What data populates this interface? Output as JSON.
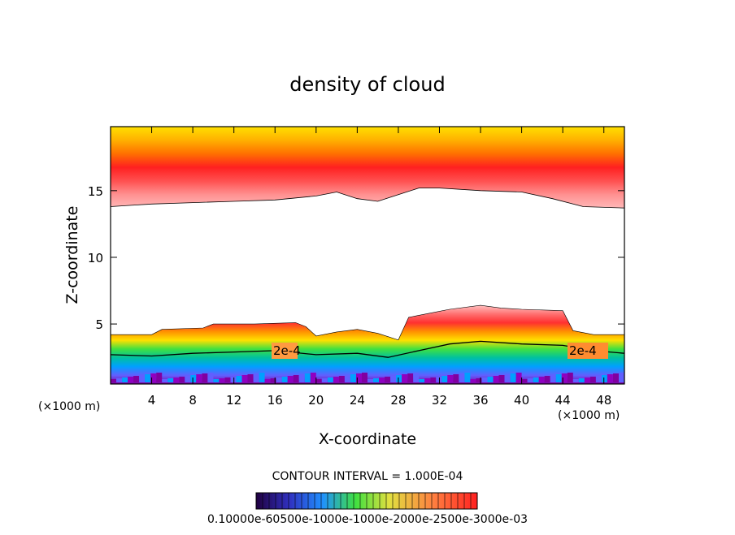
{
  "chart_data": {
    "type": "heatmap",
    "title": "density of cloud",
    "xlabel": "X-coordinate",
    "ylabel": "Z-coordinate",
    "x_unit": "(×1000 m)",
    "y_unit": "(×1000 m)",
    "xlim": [
      0,
      50
    ],
    "ylim": [
      0.5,
      19.8
    ],
    "x_ticks": [
      4,
      8,
      12,
      16,
      20,
      24,
      28,
      32,
      36,
      40,
      44,
      48
    ],
    "x_tick_labels": [
      "4",
      "8",
      "12",
      "16",
      "20",
      "24",
      "28",
      "32",
      "36",
      "40",
      "44",
      "48"
    ],
    "y_ticks": [
      5,
      10,
      15
    ],
    "y_tick_labels": [
      "5",
      "10",
      "15"
    ],
    "contour_interval_text": "CONTOUR INTERVAL = 1.000E-04",
    "contour_labels": [
      "2e-4",
      "2e-4"
    ],
    "colorbar_labels_text": "0.10000e-60500e-1000e-1000e-2000e-2500e-3000e-03",
    "upper_cloud_base_km": [
      [
        0,
        13.8
      ],
      [
        2,
        13.9
      ],
      [
        4,
        14.0
      ],
      [
        8,
        14.1
      ],
      [
        12,
        14.2
      ],
      [
        16,
        14.3
      ],
      [
        20,
        14.6
      ],
      [
        22,
        14.9
      ],
      [
        24,
        14.4
      ],
      [
        26,
        14.2
      ],
      [
        28,
        14.7
      ],
      [
        30,
        15.2
      ],
      [
        32,
        15.2
      ],
      [
        36,
        15.0
      ],
      [
        40,
        14.9
      ],
      [
        43,
        14.4
      ],
      [
        46,
        13.8
      ],
      [
        50,
        13.7
      ]
    ],
    "lower_cloud_top_km": [
      [
        0,
        4.2
      ],
      [
        4,
        4.2
      ],
      [
        5,
        4.6
      ],
      [
        9,
        4.7
      ],
      [
        10,
        5.0
      ],
      [
        14,
        5.0
      ],
      [
        18,
        5.1
      ],
      [
        19,
        4.8
      ],
      [
        20,
        4.1
      ],
      [
        22,
        4.4
      ],
      [
        24,
        4.6
      ],
      [
        26,
        4.3
      ],
      [
        28,
        3.8
      ],
      [
        29,
        5.5
      ],
      [
        31,
        5.8
      ],
      [
        33,
        6.1
      ],
      [
        36,
        6.4
      ],
      [
        38,
        6.2
      ],
      [
        40,
        6.1
      ],
      [
        44,
        6.0
      ],
      [
        45,
        4.5
      ],
      [
        47,
        4.2
      ],
      [
        50,
        4.2
      ]
    ],
    "contour_2e-4_km": [
      [
        0,
        2.7
      ],
      [
        4,
        2.6
      ],
      [
        8,
        2.8
      ],
      [
        12,
        2.9
      ],
      [
        16,
        3.0
      ],
      [
        20,
        2.7
      ],
      [
        24,
        2.8
      ],
      [
        27,
        2.5
      ],
      [
        30,
        3.0
      ],
      [
        33,
        3.5
      ],
      [
        36,
        3.7
      ],
      [
        40,
        3.5
      ],
      [
        44,
        3.4
      ],
      [
        47,
        3.0
      ],
      [
        50,
        2.8
      ]
    ],
    "colors": {
      "upper_band": [
        "#ffe000",
        "#ffb000",
        "#ff7000",
        "#ff2020",
        "#ff5050",
        "#ff9090",
        "#ffb8b8"
      ],
      "lower_band": [
        "#ffc0c0",
        "#ff7070",
        "#ff3030",
        "#ff9000",
        "#ffe000",
        "#40e040",
        "#00c0a0",
        "#00a0ff",
        "#6060ff",
        "#8000a0"
      ]
    }
  }
}
